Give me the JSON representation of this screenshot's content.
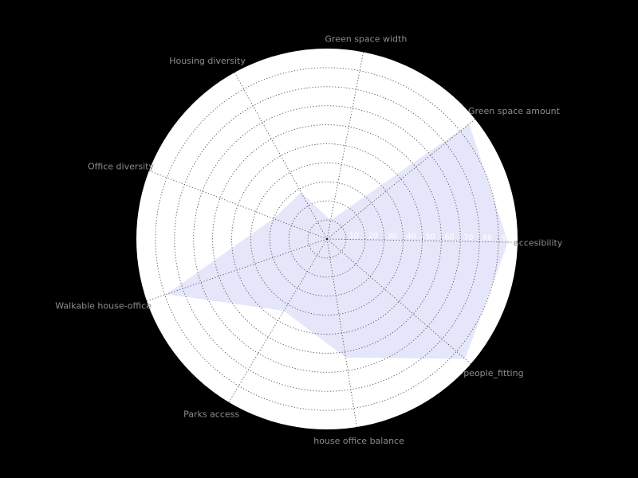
{
  "chart_data": {
    "type": "radar",
    "title": "",
    "axes": [
      "accesibility",
      "Green space amount",
      "Green space width",
      "Housing diversity",
      "Office diversity",
      "Walkable house-office",
      "Parks access",
      "house office balance",
      "people_fitting"
    ],
    "values": [
      95,
      96,
      10,
      28,
      30,
      89,
      44,
      63,
      96
    ],
    "rmax": 100,
    "ticks": [
      10,
      20,
      30,
      40,
      50,
      60,
      70,
      80,
      90
    ],
    "tick_labels": [
      "10",
      "20",
      "30",
      "40",
      "50",
      "60",
      "70",
      "80",
      "90"
    ],
    "grid": true,
    "colors": {
      "background": "#000000",
      "plot_area": "#ffffff",
      "fill": "#e6e6fa",
      "grid": "#4d4d4d",
      "axis_label": "#8c8c8c",
      "tick_label": "#ffffff"
    }
  }
}
